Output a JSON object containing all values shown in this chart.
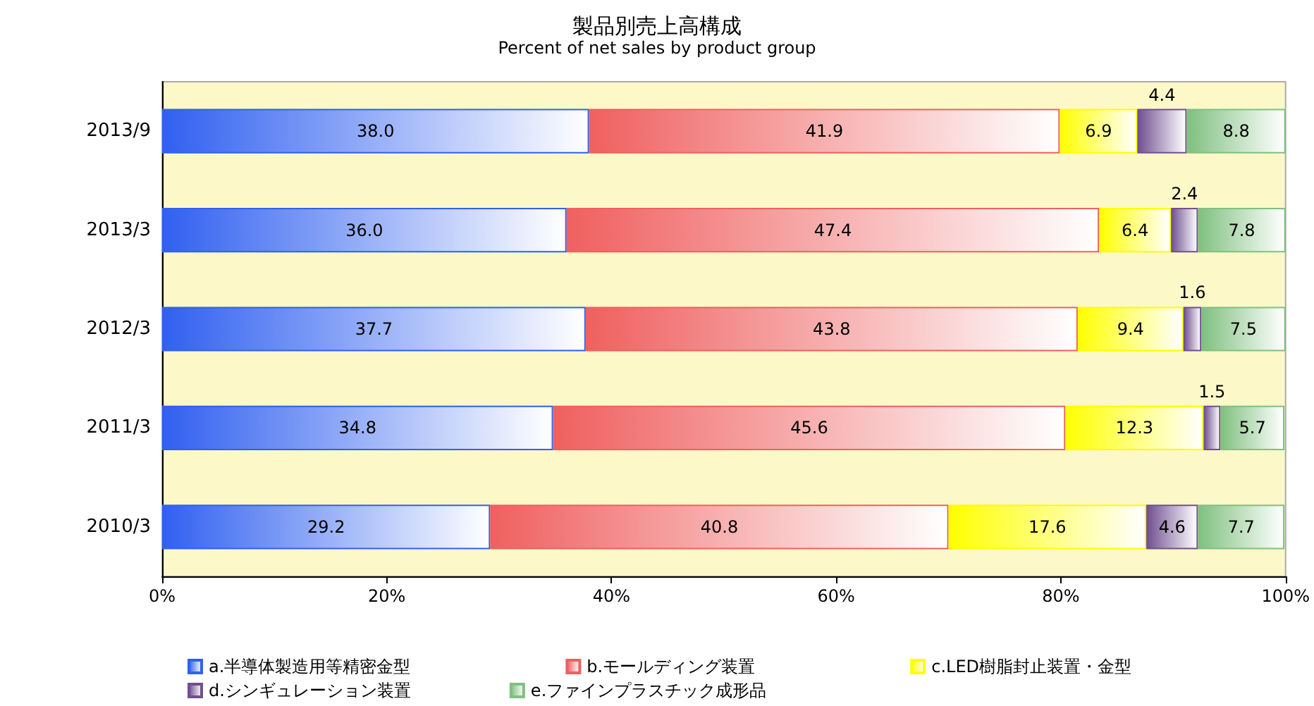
{
  "chart_data": {
    "type": "bar",
    "orientation": "horizontal",
    "stacked": true,
    "title": "製品別売上高構成",
    "subtitle": "Percent of net sales by product group",
    "categories": [
      "2013/9",
      "2013/3",
      "2012/3",
      "2011/3",
      "2010/3"
    ],
    "series": [
      {
        "name": "a.半導体製造用等精密金型",
        "color": "#3060f0",
        "values": [
          38.0,
          36.0,
          37.7,
          34.8,
          29.2
        ],
        "value_labels": [
          "38.0",
          "36.0",
          "37.7",
          "34.8",
          "29.2"
        ]
      },
      {
        "name": "b.モールディング装置",
        "color": "#f06060",
        "values": [
          41.9,
          47.4,
          43.8,
          45.6,
          40.8
        ],
        "value_labels": [
          "41.9",
          "47.4",
          "43.8",
          "45.6",
          "40.8"
        ]
      },
      {
        "name": "c.LED樹脂封止装置・金型",
        "color": "#ffff00",
        "values": [
          6.9,
          6.4,
          9.4,
          12.3,
          17.6
        ],
        "value_labels": [
          "6.9",
          "6.4",
          "9.4",
          "12.3",
          "17.6"
        ]
      },
      {
        "name": "d.シンギュレーション装置",
        "color": "#705090",
        "values": [
          4.4,
          2.4,
          1.6,
          1.5,
          4.6
        ],
        "value_labels": [
          "4.4",
          "2.4",
          "1.6",
          "1.5",
          "4.6"
        ]
      },
      {
        "name": "e.ファインプラスチック成形品",
        "color": "#80c080",
        "values": [
          8.8,
          7.8,
          7.5,
          5.7,
          7.7
        ],
        "value_labels": [
          "8.8",
          "7.8",
          "7.5",
          "5.7",
          "7.7"
        ]
      }
    ],
    "xlim": [
      0,
      100
    ],
    "xticks": [
      {
        "value": 0,
        "label": "0%"
      },
      {
        "value": 20,
        "label": "20%"
      },
      {
        "value": 40,
        "label": "40%"
      },
      {
        "value": 60,
        "label": "60%"
      },
      {
        "value": 80,
        "label": "80%"
      },
      {
        "value": 100,
        "label": "100%"
      }
    ],
    "legend": "bottom"
  }
}
